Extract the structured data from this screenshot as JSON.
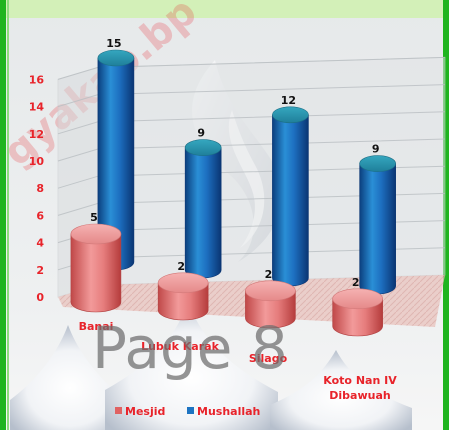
{
  "watermark": {
    "top_text": "gyakab.bp",
    "page_text": "Page 8"
  },
  "colors": {
    "frame_green": "#1fb41f",
    "header_strip": "#d3f0b8",
    "mesjid": "#e06262",
    "mushallah": "#1d74c2",
    "label_red": "#e8232a"
  },
  "chart_data": {
    "type": "bar",
    "style": "3d-cylinder",
    "categories": [
      "Banai",
      "Lubuk Karak",
      "Silago",
      "Koto Nan IV Dibawuah"
    ],
    "category_lines": [
      [
        "Banai"
      ],
      [
        "Lubuk Karak"
      ],
      [
        "Silago"
      ],
      [
        "Koto Nan IV",
        "Dibawuah"
      ]
    ],
    "series": [
      {
        "name": "Mesjid",
        "values": [
          5,
          2,
          2,
          2
        ]
      },
      {
        "name": "Mushallah",
        "values": [
          15,
          9,
          12,
          9
        ]
      }
    ],
    "y_ticks": [
      0,
      2,
      4,
      6,
      8,
      10,
      12,
      14,
      16
    ],
    "ylim": [
      0,
      16
    ],
    "grid": true,
    "legend_position": "bottom",
    "title": "",
    "xlabel": "",
    "ylabel": ""
  }
}
